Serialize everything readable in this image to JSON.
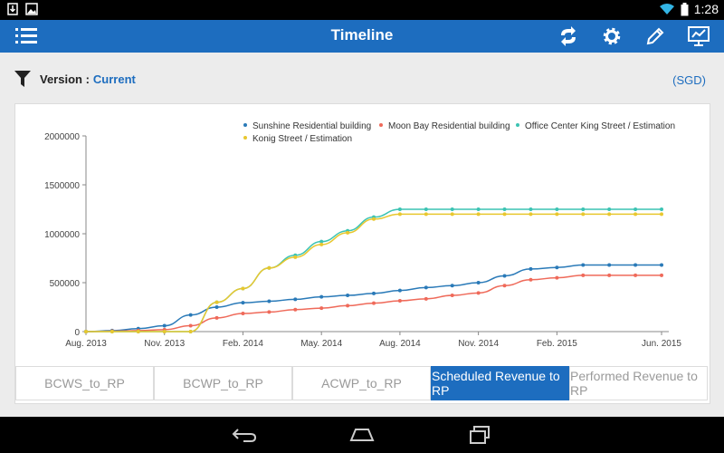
{
  "status_bar": {
    "time": "1:28"
  },
  "app_bar": {
    "title": "Timeline"
  },
  "version": {
    "label": "Version :",
    "value": "Current"
  },
  "currency": "(SGD)",
  "colors": {
    "primary": "#1d6dbf",
    "sunshine": "#2a7ab8",
    "moonbay": "#ef6a5a",
    "office": "#3cc3b3",
    "konig": "#e8c72f"
  },
  "tabs": [
    {
      "label": "BCWS_to_RP",
      "active": false
    },
    {
      "label": "BCWP_to_RP",
      "active": false
    },
    {
      "label": "ACWP_to_RP",
      "active": false
    },
    {
      "label": "Scheduled Revenue to RP",
      "active": true
    },
    {
      "label": "Performed Revenue to RP",
      "active": false
    }
  ],
  "chart_data": {
    "type": "line",
    "x": [
      "Aug. 2013",
      "Sep. 2013",
      "Oct. 2013",
      "Nov. 2013",
      "Dec. 2013",
      "Jan. 2014",
      "Feb. 2014",
      "Mar. 2014",
      "Apr. 2014",
      "May. 2014",
      "Jun. 2014",
      "Jul. 2014",
      "Aug. 2014",
      "Sep. 2014",
      "Oct. 2014",
      "Nov. 2014",
      "Dec. 2014",
      "Jan. 2015",
      "Feb. 2015",
      "Mar. 2015",
      "Apr. 2015",
      "May. 2015",
      "Jun. 2015"
    ],
    "x_tick_labels": [
      "Aug. 2013",
      "Nov. 2013",
      "Feb. 2014",
      "May. 2014",
      "Aug. 2014",
      "Nov. 2014",
      "Feb. 2015",
      "Jun. 2015"
    ],
    "y_ticks": [
      "0",
      "500000",
      "1000000",
      "1500000",
      "2000000"
    ],
    "ylim": [
      0,
      2000000
    ],
    "grid": false,
    "legend_position": "top-right",
    "series": [
      {
        "name": "Sunshine Residential building",
        "color": "#2a7ab8",
        "values": [
          0,
          10000,
          30000,
          60000,
          170000,
          250000,
          295000,
          310000,
          330000,
          355000,
          370000,
          390000,
          420000,
          450000,
          470000,
          500000,
          570000,
          640000,
          655000,
          680000,
          680000,
          680000,
          680000
        ]
      },
      {
        "name": "Moon Bay Residential building",
        "color": "#ef6a5a",
        "values": [
          0,
          5000,
          10000,
          20000,
          60000,
          140000,
          185000,
          200000,
          225000,
          240000,
          265000,
          290000,
          315000,
          335000,
          370000,
          395000,
          470000,
          530000,
          550000,
          575000,
          575000,
          575000,
          575000
        ]
      },
      {
        "name": "Office Center King Street / Estimation",
        "color": "#3cc3b3",
        "values": [
          0,
          0,
          0,
          0,
          0,
          300000,
          440000,
          650000,
          780000,
          920000,
          1030000,
          1170000,
          1250000,
          1250000,
          1250000,
          1250000,
          1250000,
          1250000,
          1250000,
          1250000,
          1250000,
          1250000,
          1250000
        ]
      },
      {
        "name": "Konig Street / Estimation",
        "color": "#e8c72f",
        "values": [
          0,
          0,
          0,
          0,
          0,
          300000,
          440000,
          650000,
          760000,
          890000,
          1010000,
          1150000,
          1200000,
          1200000,
          1200000,
          1200000,
          1200000,
          1200000,
          1200000,
          1200000,
          1200000,
          1200000,
          1200000
        ]
      }
    ]
  }
}
